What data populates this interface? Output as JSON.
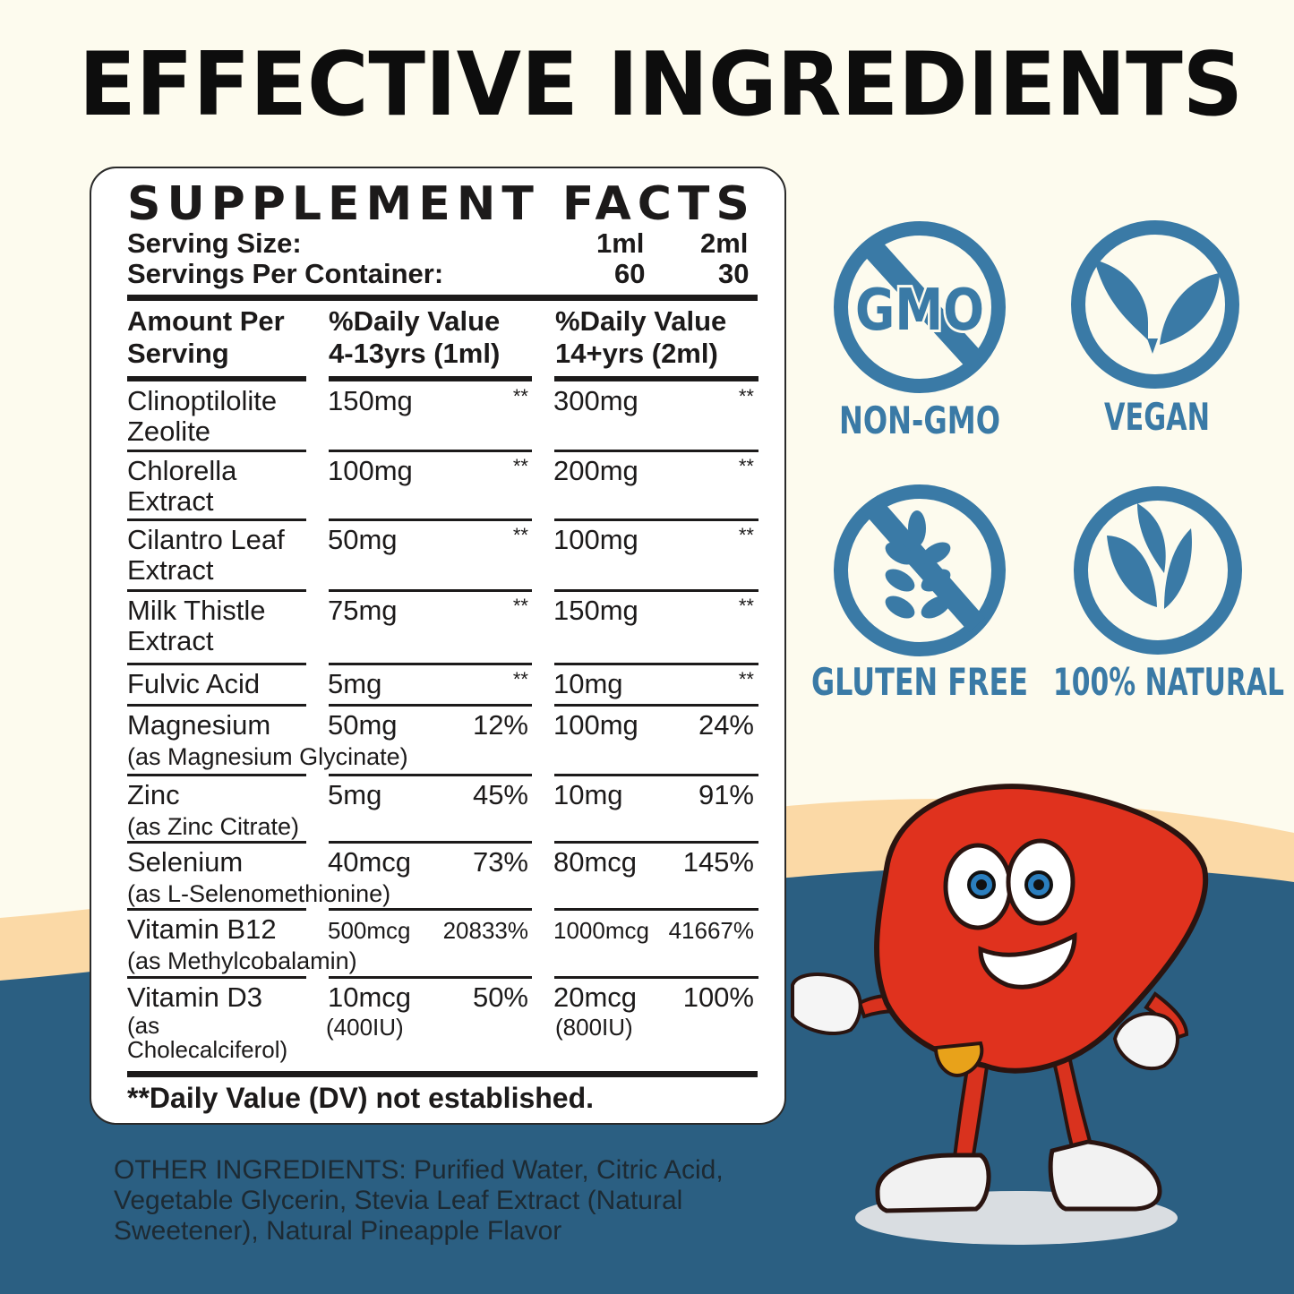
{
  "headline": "EFFECTIVE INGREDIENTS",
  "colors": {
    "background": "#fdfbee",
    "peach": "#fbd9a6",
    "navy": "#2b5f82",
    "icon_blue": "#3a7aa6",
    "liver_red": "#e0321e"
  },
  "facts": {
    "title": "SUPPLEMENT FACTS",
    "serving_size_label": "Serving Size:",
    "serving_size_1": "1ml",
    "serving_size_2": "2ml",
    "servings_label": "Servings Per Container:",
    "servings_1": "60",
    "servings_2": "30",
    "col_headers": {
      "amount_line1": "Amount Per",
      "amount_line2": "Serving",
      "dv1_line1": "%Daily Value",
      "dv1_line2": "4-13yrs (1ml)",
      "dv2_line1": "%Daily Value",
      "dv2_line2": "14+yrs (2ml)"
    },
    "rows": [
      {
        "name": [
          "Clinoptilolite",
          "Zeolite"
        ],
        "sub": "",
        "amt1": "150mg",
        "dv1": "**",
        "amt2": "300mg",
        "dv2": "**"
      },
      {
        "name": [
          "Chlorella",
          "Extract"
        ],
        "sub": "",
        "amt1": "100mg",
        "dv1": "**",
        "amt2": "200mg",
        "dv2": "**"
      },
      {
        "name": [
          "Cilantro Leaf",
          "Extract"
        ],
        "sub": "",
        "amt1": "50mg",
        "dv1": "**",
        "amt2": "100mg",
        "dv2": "**"
      },
      {
        "name": [
          "Milk Thistle",
          "Extract"
        ],
        "sub": "",
        "amt1": "75mg",
        "dv1": "**",
        "amt2": "150mg",
        "dv2": "**"
      },
      {
        "name": [
          "Fulvic Acid"
        ],
        "sub": "",
        "amt1": "5mg",
        "dv1": "**",
        "amt2": "10mg",
        "dv2": "**"
      },
      {
        "name": [
          "Magnesium"
        ],
        "sub": "(as Magnesium Glycinate)",
        "amt1": "50mg",
        "dv1": "12%",
        "amt2": "100mg",
        "dv2": "24%"
      },
      {
        "name": [
          "Zinc"
        ],
        "sub": "(as Zinc Citrate)",
        "amt1": "5mg",
        "dv1": "45%",
        "amt2": "10mg",
        "dv2": "91%"
      },
      {
        "name": [
          "Selenium"
        ],
        "sub": "(as L-Selenomethionine)",
        "amt1": "40mcg",
        "dv1": "73%",
        "amt2": "80mcg",
        "dv2": "145%"
      },
      {
        "name": [
          "Vitamin B12"
        ],
        "sub": "(as Methylcobalamin)",
        "amt1": "500mcg",
        "dv1": "20833%",
        "amt2": "1000mcg",
        "dv2": "41667%"
      },
      {
        "name": [
          "Vitamin D3",
          "(as",
          "Cholecalciferol)"
        ],
        "sub": "",
        "amt1": "10mcg",
        "amt1_sub": "(400IU)",
        "dv1": "50%",
        "amt2": "20mcg",
        "amt2_sub": "(800IU)",
        "dv2": "100%"
      }
    ],
    "footer": "**Daily Value (DV) not established."
  },
  "other_ingredients": {
    "label": "OTHER INGREDIENTS:",
    "text": "Purified Water, Citric Acid, Vegetable Glycerin, Stevia Leaf Extract (Natural Sweetener), Natural Pineapple Flavor"
  },
  "badges": [
    {
      "label": "NON-GMO",
      "icon": "no-gmo-icon",
      "inner_text": "GMO"
    },
    {
      "label": "VEGAN",
      "icon": "vegan-leaf-icon"
    },
    {
      "label": "GLUTEN FREE",
      "icon": "no-wheat-icon"
    },
    {
      "label": "100% NATURAL",
      "icon": "natural-leaf-icon"
    }
  ]
}
